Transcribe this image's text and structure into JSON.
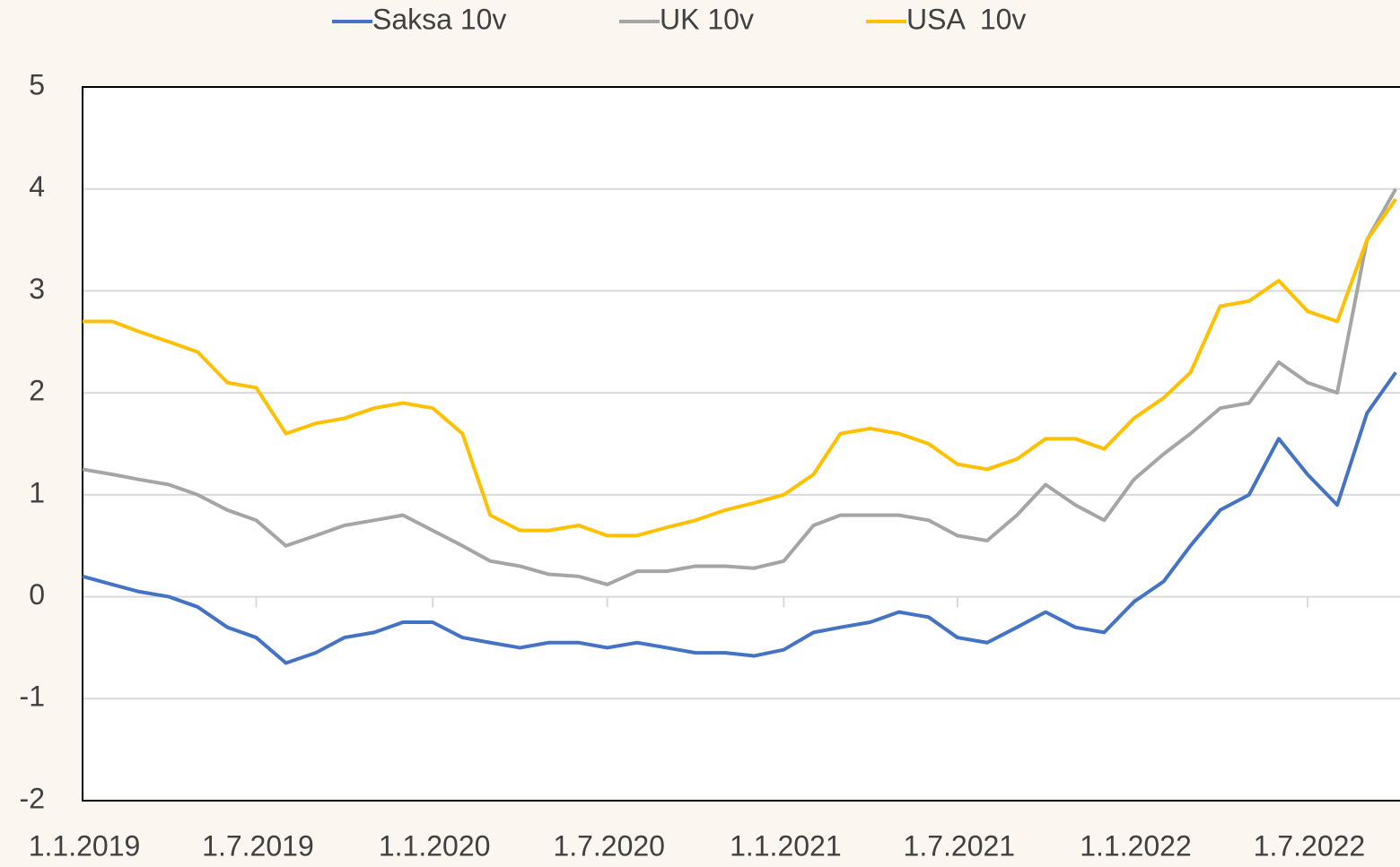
{
  "chart_data": {
    "type": "line",
    "x": [
      "1.1.2019",
      "1.2.2019",
      "1.3.2019",
      "1.4.2019",
      "1.5.2019",
      "1.6.2019",
      "1.7.2019",
      "1.8.2019",
      "1.9.2019",
      "1.10.2019",
      "1.11.2019",
      "1.12.2019",
      "1.1.2020",
      "1.2.2020",
      "1.3.2020",
      "1.4.2020",
      "1.5.2020",
      "1.6.2020",
      "1.7.2020",
      "1.8.2020",
      "1.9.2020",
      "1.10.2020",
      "1.11.2020",
      "1.12.2020",
      "1.1.2021",
      "1.2.2021",
      "1.3.2021",
      "1.4.2021",
      "1.5.2021",
      "1.6.2021",
      "1.7.2021",
      "1.8.2021",
      "1.9.2021",
      "1.10.2021",
      "1.11.2021",
      "1.12.2021",
      "1.1.2022",
      "1.2.2022",
      "1.3.2022",
      "1.4.2022",
      "1.5.2022",
      "1.6.2022",
      "1.7.2022",
      "1.8.2022",
      "1.9.2022",
      "1.10.2022"
    ],
    "series": [
      {
        "name": "Saksa 10v",
        "color": "#4472c4",
        "values": [
          0.2,
          0.12,
          0.05,
          0.0,
          -0.1,
          -0.3,
          -0.4,
          -0.65,
          -0.55,
          -0.4,
          -0.35,
          -0.25,
          -0.25,
          -0.4,
          -0.45,
          -0.5,
          -0.45,
          -0.45,
          -0.5,
          -0.45,
          -0.5,
          -0.55,
          -0.55,
          -0.58,
          -0.52,
          -0.35,
          -0.3,
          -0.25,
          -0.15,
          -0.2,
          -0.4,
          -0.45,
          -0.3,
          -0.15,
          -0.3,
          -0.35,
          -0.05,
          0.15,
          0.5,
          0.85,
          1.0,
          1.55,
          1.2,
          0.9,
          1.8,
          2.2
        ]
      },
      {
        "name": "UK 10v",
        "color": "#a5a5a5",
        "values": [
          1.25,
          1.2,
          1.15,
          1.1,
          1.0,
          0.85,
          0.75,
          0.5,
          0.6,
          0.7,
          0.75,
          0.8,
          0.65,
          0.5,
          0.35,
          0.3,
          0.22,
          0.2,
          0.12,
          0.25,
          0.25,
          0.3,
          0.3,
          0.28,
          0.35,
          0.7,
          0.8,
          0.8,
          0.8,
          0.75,
          0.6,
          0.55,
          0.8,
          1.1,
          0.9,
          0.75,
          1.15,
          1.4,
          1.6,
          1.85,
          1.9,
          2.3,
          2.1,
          2.0,
          3.5,
          4.0
        ]
      },
      {
        "name": "USA  10v",
        "color": "#ffc000",
        "values": [
          2.7,
          2.7,
          2.6,
          2.5,
          2.4,
          2.1,
          2.05,
          1.6,
          1.7,
          1.75,
          1.85,
          1.9,
          1.85,
          1.6,
          0.8,
          0.65,
          0.65,
          0.7,
          0.6,
          0.6,
          0.68,
          0.75,
          0.85,
          0.92,
          1.0,
          1.2,
          1.6,
          1.65,
          1.6,
          1.5,
          1.3,
          1.25,
          1.35,
          1.55,
          1.55,
          1.45,
          1.75,
          1.95,
          2.2,
          2.85,
          2.9,
          3.1,
          2.8,
          2.7,
          3.5,
          3.9
        ]
      }
    ],
    "ylim": [
      -2,
      5
    ],
    "yticks": [
      -2,
      -1,
      0,
      1,
      2,
      3,
      4,
      5
    ],
    "xticks": [
      "1.1.2019",
      "1.7.2019",
      "1.1.2020",
      "1.7.2020",
      "1.1.2021",
      "1.7.2021",
      "1.1.2022",
      "1.7.2022"
    ],
    "grid": true,
    "legend": "top"
  }
}
